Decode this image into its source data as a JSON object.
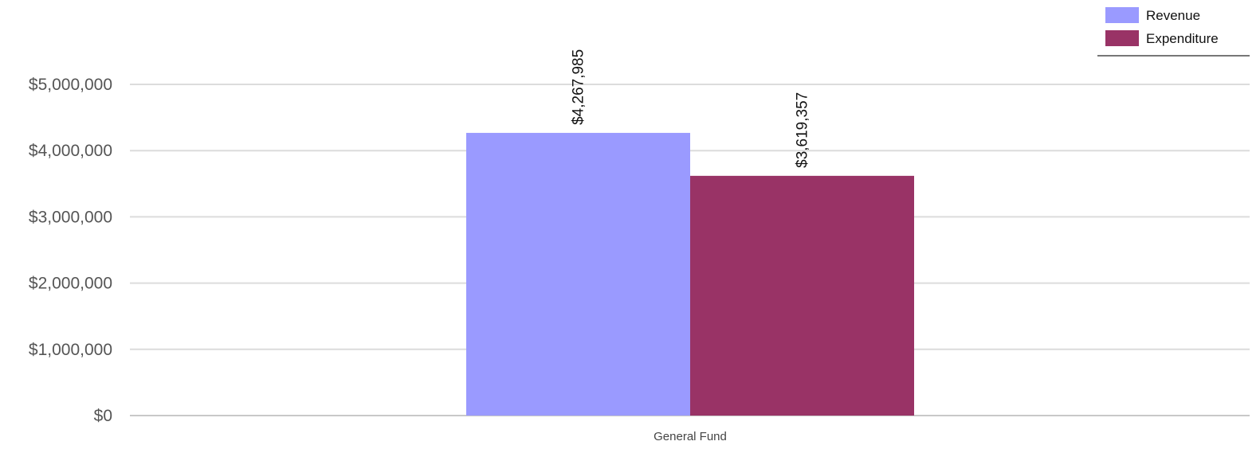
{
  "chart_data": {
    "type": "bar",
    "categories": [
      "General Fund"
    ],
    "series": [
      {
        "name": "Revenue",
        "values": [
          4267985
        ],
        "labels": [
          "$4,267,985"
        ],
        "color": "#9a9aff"
      },
      {
        "name": "Expenditure",
        "values": [
          3619357
        ],
        "labels": [
          "$3,619,357"
        ],
        "color": "#993366"
      }
    ],
    "ylim": [
      0,
      5000000
    ],
    "yticks": [
      0,
      1000000,
      2000000,
      3000000,
      4000000,
      5000000
    ],
    "ytick_labels": [
      "$0",
      "$1,000,000",
      "$2,000,000",
      "$3,000,000",
      "$4,000,000",
      "$5,000,000"
    ],
    "grid": true,
    "legend": "top-right",
    "title": "",
    "xlabel": "",
    "ylabel": ""
  }
}
